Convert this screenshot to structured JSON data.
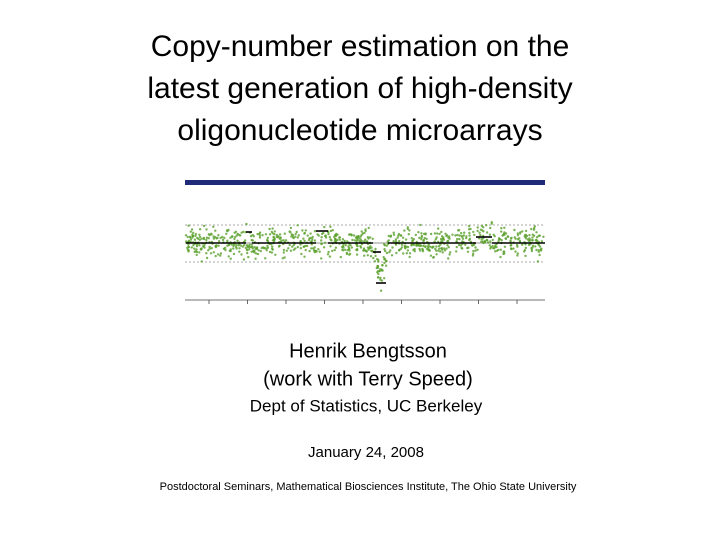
{
  "slide": {
    "title": [
      "Copy-number estimation on the",
      "latest generation of high-density",
      "oligonucleotide microarrays"
    ],
    "author": "Henrik Bengtsson",
    "collaboration": "(work with Terry Speed)",
    "affiliation": "Dept of Statistics, UC Berkeley",
    "date": "January 24, 2008",
    "event": "Postdoctoral Seminars, Mathematical Biosciences Institute, The Ohio State University"
  }
}
